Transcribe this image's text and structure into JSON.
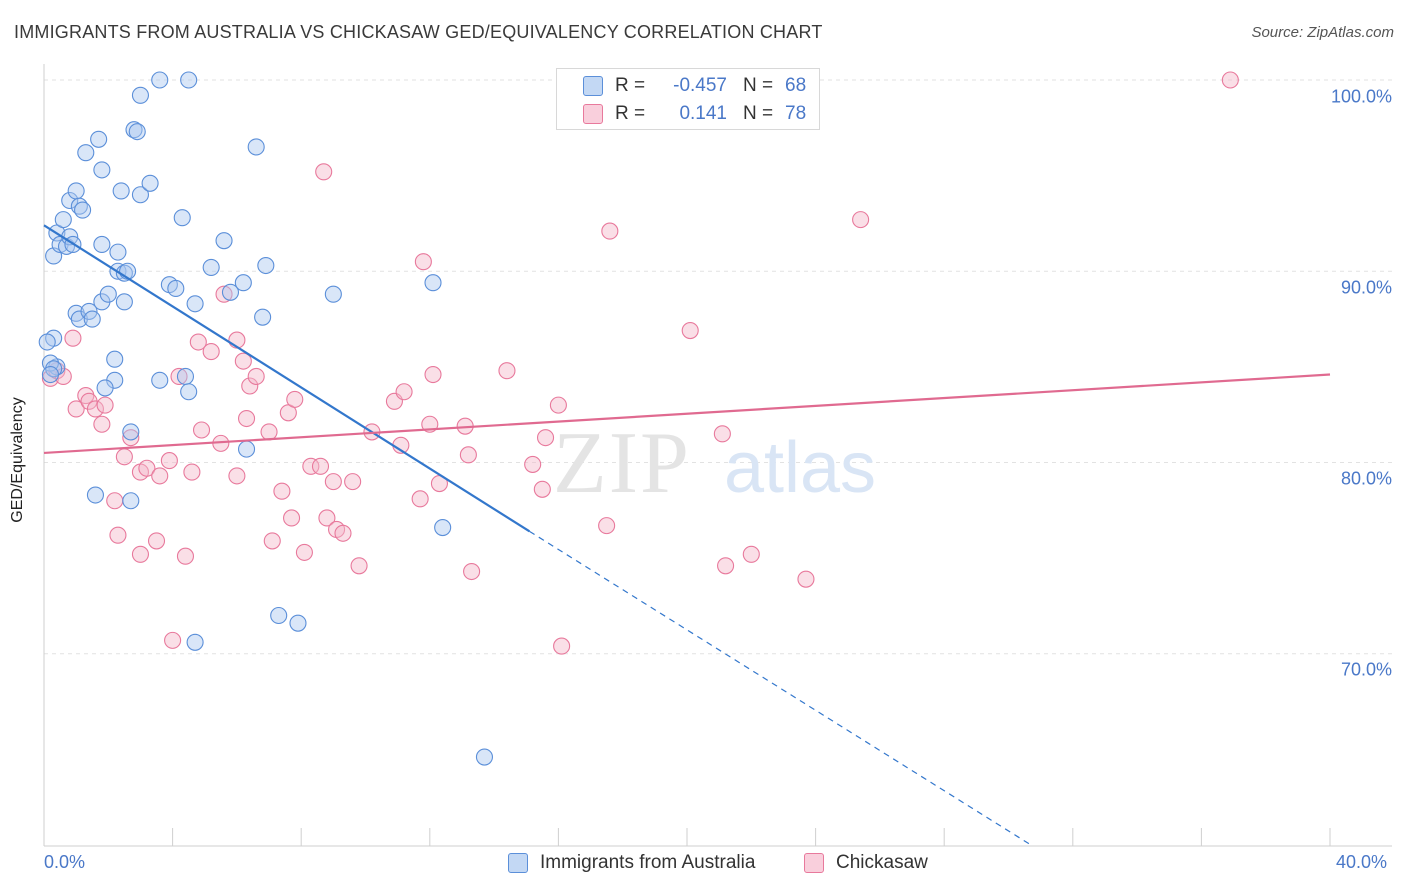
{
  "title": "IMMIGRANTS FROM AUSTRALIA VS CHICKASAW GED/EQUIVALENCY CORRELATION CHART",
  "source": "Source: ZipAtlas.com",
  "watermark": {
    "zip": "ZIP",
    "atlas": "atlas"
  },
  "legend": {
    "r_label": "R =",
    "n_label": "N =",
    "rows": [
      {
        "r": "-0.457",
        "n": "68"
      },
      {
        "r": "0.141",
        "n": "78"
      }
    ]
  },
  "chart_data": {
    "type": "scatter",
    "title": "IMMIGRANTS FROM AUSTRALIA VS CHICKASAW GED/EQUIVALENCY CORRELATION CHART",
    "xlabel": "",
    "ylabel": "GED/Equivalency",
    "xlim": [
      0,
      40
    ],
    "ylim": [
      60,
      100
    ],
    "x_tick_labels": [
      "0.0%",
      "40.0%"
    ],
    "y_ticks": [
      {
        "value": 70,
        "label": "70.0%"
      },
      {
        "value": 80,
        "label": "80.0%"
      },
      {
        "value": 90,
        "label": "90.0%"
      },
      {
        "value": 100,
        "label": "100.0%"
      }
    ],
    "grid": true,
    "series": [
      {
        "name": "Immigrants from Australia",
        "color": "#5b8fd9",
        "fill": "#aac8f0",
        "R": -0.457,
        "N": 68,
        "trend": {
          "x_start": 0,
          "y_start": 92.4,
          "x_solid_end": 15.1,
          "y_solid_end": 76.4,
          "x_dash_end": 30.7,
          "y_dash_end": 60.0
        },
        "points": [
          [
            0.3,
            86.5
          ],
          [
            0.4,
            85.0
          ],
          [
            0.3,
            90.8
          ],
          [
            0.4,
            92.0
          ],
          [
            0.5,
            91.4
          ],
          [
            0.6,
            92.7
          ],
          [
            0.7,
            91.3
          ],
          [
            0.8,
            91.8
          ],
          [
            0.9,
            91.4
          ],
          [
            0.8,
            93.7
          ],
          [
            1.0,
            94.2
          ],
          [
            1.1,
            93.4
          ],
          [
            1.2,
            93.2
          ],
          [
            1.3,
            96.2
          ],
          [
            1.7,
            96.9
          ],
          [
            1.8,
            95.3
          ],
          [
            1.8,
            91.4
          ],
          [
            1.0,
            87.8
          ],
          [
            1.1,
            87.5
          ],
          [
            1.4,
            87.9
          ],
          [
            1.5,
            87.5
          ],
          [
            1.8,
            88.4
          ],
          [
            2.0,
            88.8
          ],
          [
            2.3,
            90.0
          ],
          [
            2.3,
            91.0
          ],
          [
            2.5,
            89.9
          ],
          [
            2.6,
            90.0
          ],
          [
            2.5,
            88.4
          ],
          [
            2.4,
            94.2
          ],
          [
            2.8,
            97.4
          ],
          [
            2.9,
            97.3
          ],
          [
            3.0,
            99.2
          ],
          [
            3.0,
            94.0
          ],
          [
            3.3,
            94.6
          ],
          [
            3.6,
            100.0
          ],
          [
            4.5,
            100.0
          ],
          [
            4.3,
            92.8
          ],
          [
            3.9,
            89.3
          ],
          [
            4.1,
            89.1
          ],
          [
            4.7,
            88.3
          ],
          [
            5.2,
            90.2
          ],
          [
            5.6,
            91.6
          ],
          [
            5.8,
            88.9
          ],
          [
            6.2,
            89.4
          ],
          [
            6.6,
            96.5
          ],
          [
            6.9,
            90.3
          ],
          [
            6.8,
            87.6
          ],
          [
            9.0,
            88.8
          ],
          [
            12.1,
            89.4
          ],
          [
            2.2,
            85.4
          ],
          [
            2.2,
            84.3
          ],
          [
            1.9,
            83.9
          ],
          [
            3.6,
            84.3
          ],
          [
            4.4,
            84.5
          ],
          [
            4.5,
            83.7
          ],
          [
            2.7,
            81.6
          ],
          [
            6.3,
            80.7
          ],
          [
            1.6,
            78.3
          ],
          [
            2.7,
            78.0
          ],
          [
            12.4,
            76.6
          ],
          [
            7.3,
            72.0
          ],
          [
            7.9,
            71.6
          ],
          [
            4.7,
            70.6
          ],
          [
            13.7,
            64.6
          ],
          [
            0.1,
            86.3
          ],
          [
            0.2,
            85.2
          ],
          [
            0.3,
            84.9
          ],
          [
            0.2,
            84.6
          ]
        ]
      },
      {
        "name": "Chickasaw",
        "color": "#e8799c",
        "fill": "#f5b7ca",
        "R": 0.141,
        "N": 78,
        "trend": {
          "x_start": 0,
          "y_start": 80.5,
          "x_end": 40,
          "y_end": 84.6
        },
        "points": [
          [
            0.2,
            84.4
          ],
          [
            0.4,
            84.8
          ],
          [
            0.6,
            84.5
          ],
          [
            0.9,
            86.5
          ],
          [
            1.0,
            82.8
          ],
          [
            1.3,
            83.5
          ],
          [
            1.4,
            83.2
          ],
          [
            1.6,
            82.8
          ],
          [
            1.8,
            82.0
          ],
          [
            1.9,
            83.0
          ],
          [
            2.2,
            78.0
          ],
          [
            2.3,
            76.2
          ],
          [
            2.5,
            80.3
          ],
          [
            2.7,
            81.3
          ],
          [
            3.0,
            79.5
          ],
          [
            3.0,
            75.2
          ],
          [
            3.2,
            79.7
          ],
          [
            3.5,
            75.9
          ],
          [
            3.6,
            79.3
          ],
          [
            3.9,
            80.1
          ],
          [
            4.0,
            70.7
          ],
          [
            4.2,
            84.5
          ],
          [
            4.4,
            75.1
          ],
          [
            4.6,
            79.5
          ],
          [
            4.8,
            86.3
          ],
          [
            4.9,
            81.7
          ],
          [
            5.2,
            85.8
          ],
          [
            5.5,
            81.0
          ],
          [
            5.6,
            88.8
          ],
          [
            6.0,
            86.4
          ],
          [
            6.0,
            79.3
          ],
          [
            6.2,
            85.3
          ],
          [
            6.3,
            82.3
          ],
          [
            6.4,
            84.0
          ],
          [
            6.6,
            84.5
          ],
          [
            7.0,
            81.6
          ],
          [
            7.1,
            75.9
          ],
          [
            7.4,
            78.5
          ],
          [
            7.6,
            82.6
          ],
          [
            7.7,
            77.1
          ],
          [
            7.8,
            83.3
          ],
          [
            8.1,
            75.3
          ],
          [
            8.3,
            79.8
          ],
          [
            8.6,
            79.8
          ],
          [
            8.8,
            77.1
          ],
          [
            9.0,
            79.0
          ],
          [
            9.1,
            76.5
          ],
          [
            9.3,
            76.3
          ],
          [
            9.6,
            79.0
          ],
          [
            9.8,
            74.6
          ],
          [
            10.2,
            81.6
          ],
          [
            10.9,
            83.2
          ],
          [
            11.1,
            80.9
          ],
          [
            11.2,
            83.7
          ],
          [
            11.7,
            78.1
          ],
          [
            11.8,
            90.5
          ],
          [
            12.0,
            82.0
          ],
          [
            12.1,
            84.6
          ],
          [
            12.3,
            78.9
          ],
          [
            13.1,
            81.9
          ],
          [
            13.2,
            80.4
          ],
          [
            13.3,
            74.3
          ],
          [
            14.4,
            84.8
          ],
          [
            15.2,
            79.9
          ],
          [
            15.5,
            78.6
          ],
          [
            15.6,
            81.3
          ],
          [
            16.0,
            83.0
          ],
          [
            16.1,
            70.4
          ],
          [
            17.6,
            92.1
          ],
          [
            17.5,
            76.7
          ],
          [
            20.1,
            86.9
          ],
          [
            21.1,
            81.5
          ],
          [
            21.2,
            74.6
          ],
          [
            22.0,
            75.2
          ],
          [
            23.7,
            73.9
          ],
          [
            25.4,
            92.7
          ],
          [
            36.9,
            100.0
          ],
          [
            8.7,
            95.2
          ]
        ]
      }
    ]
  },
  "bottom_legend": [
    "Immigrants from Australia",
    "Chickasaw"
  ]
}
